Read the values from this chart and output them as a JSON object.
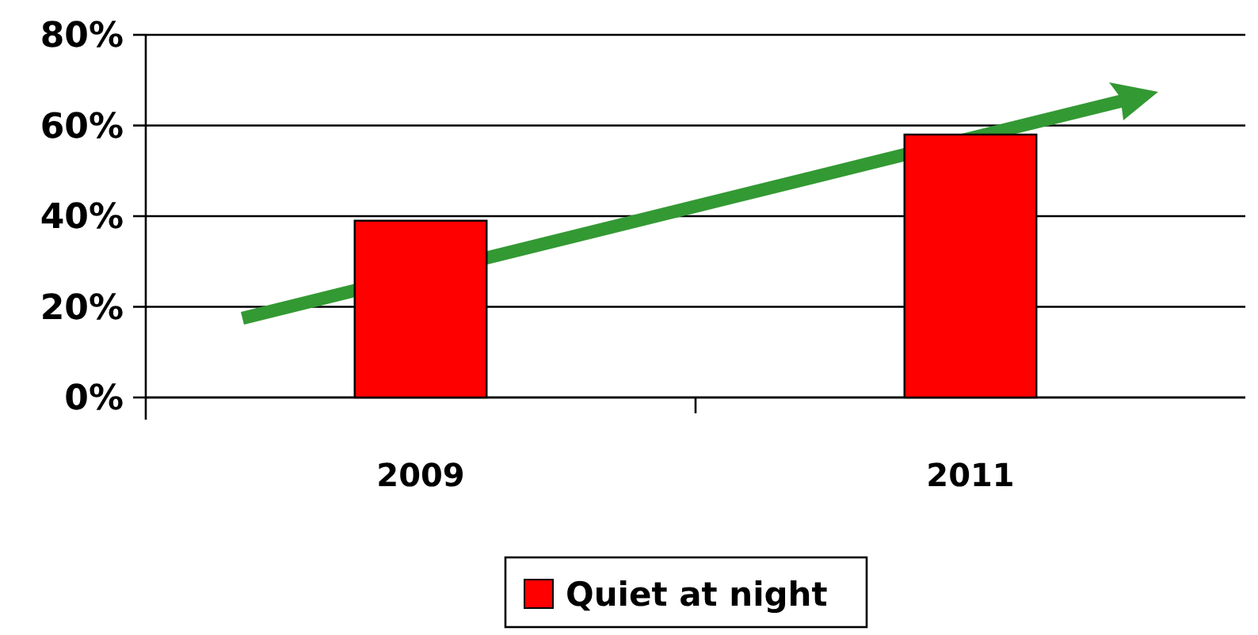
{
  "chart_data": {
    "type": "bar",
    "categories": [
      "2009",
      "2011"
    ],
    "series": [
      {
        "name": "Quiet at night",
        "color": "#ff0000",
        "values": [
          39,
          58
        ]
      }
    ],
    "ylim": [
      0,
      80
    ],
    "yticks": [
      {
        "value": 0,
        "label": "0%"
      },
      {
        "value": 20,
        "label": "20%"
      },
      {
        "value": 40,
        "label": "40%"
      },
      {
        "value": 60,
        "label": "60%"
      },
      {
        "value": 80,
        "label": "80%"
      }
    ],
    "grid": "y",
    "legend": "bottom"
  }
}
